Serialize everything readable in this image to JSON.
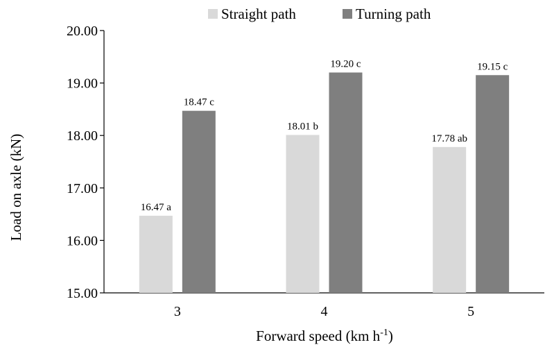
{
  "chart_data": {
    "type": "bar",
    "categories": [
      "3",
      "4",
      "5"
    ],
    "series": [
      {
        "name": "Straight path",
        "color": "#d9d9d9",
        "values": [
          16.47,
          18.01,
          17.78
        ],
        "labels": [
          "16.47 a",
          "18.01 b",
          "17.78 ab"
        ]
      },
      {
        "name": "Turning path",
        "color": "#7f7f7f",
        "values": [
          18.47,
          19.2,
          19.15
        ],
        "labels": [
          "18.47 c",
          "19.20 c",
          "19.15 c"
        ]
      }
    ],
    "ylabel": "Load on axle (kN)",
    "xlabel": "Forward speed (km h",
    "xlabel_superscript": "-1",
    "xlabel_suffix": ")",
    "ylim": [
      15,
      20
    ],
    "yticks": [
      "15.00",
      "16.00",
      "17.00",
      "18.00",
      "19.00",
      "20.00"
    ],
    "grid": false,
    "legend_position": "top"
  }
}
